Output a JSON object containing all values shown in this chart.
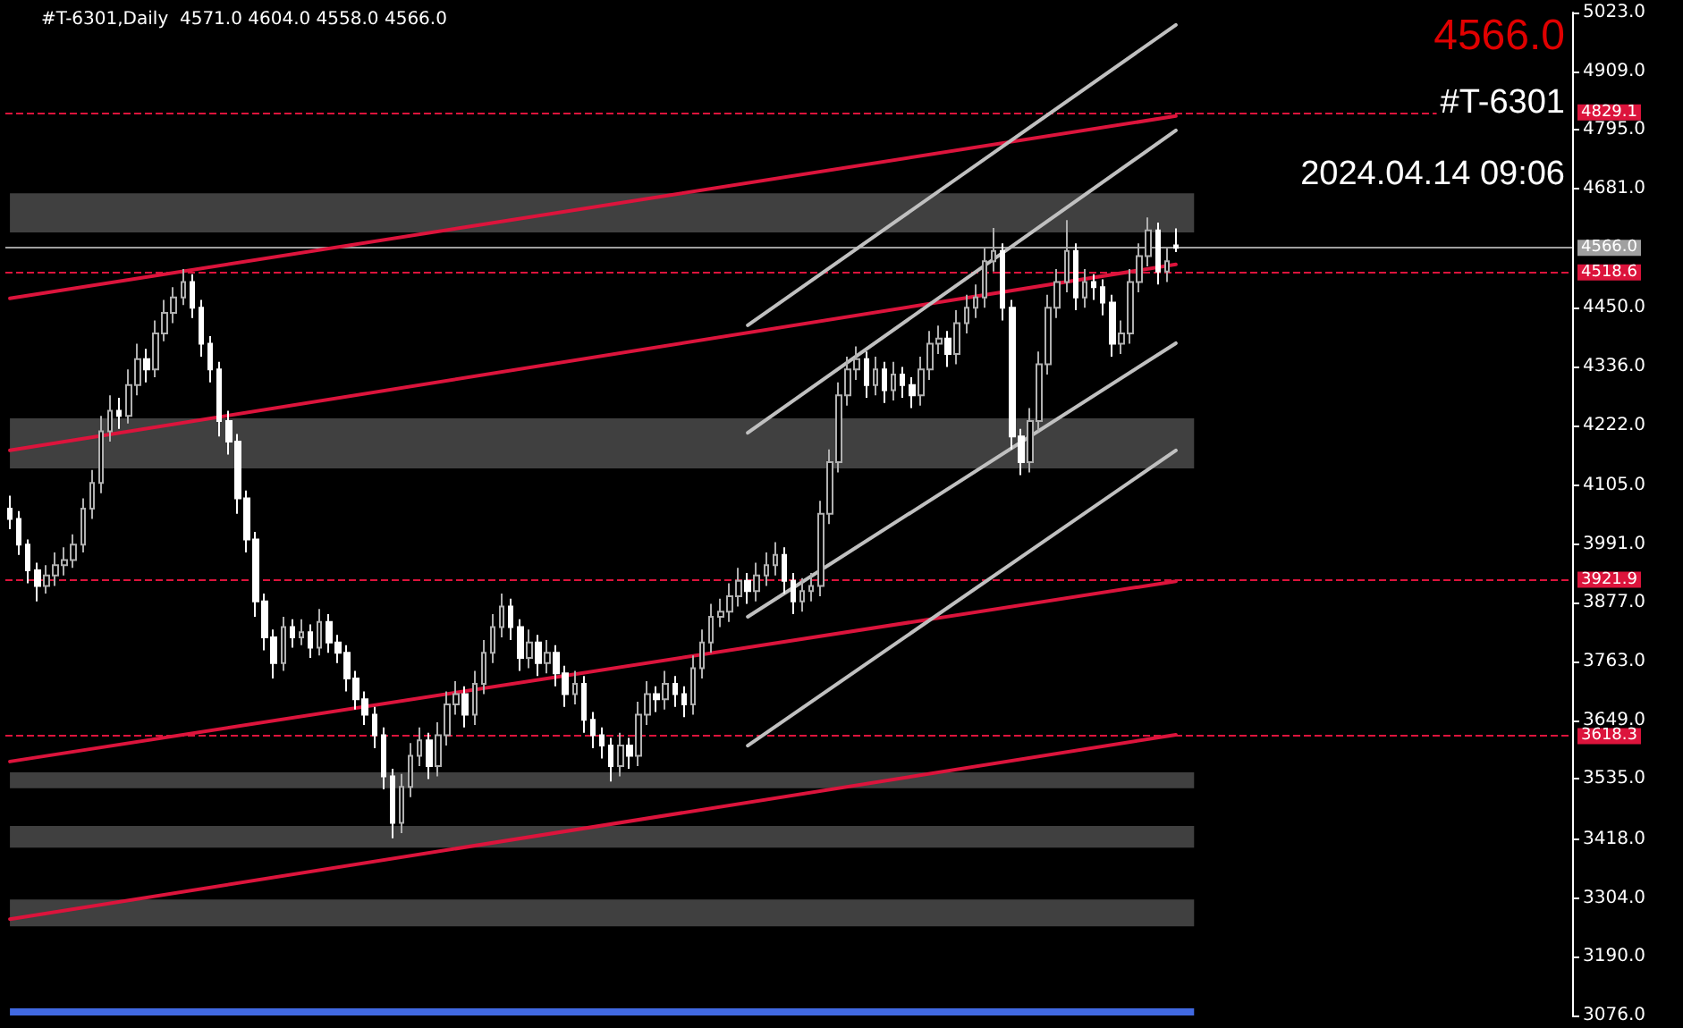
{
  "chart_data": {
    "type": "candlestick",
    "title": "#T-6301,Daily  4571.0 4604.0 4558.0 4566.0",
    "annotations": [
      "4566.0",
      "#T-6301",
      "2024.04.14 09:06"
    ],
    "categories": [
      null,
      null,
      null,
      null,
      null,
      null,
      null,
      null,
      null,
      null,
      null,
      null,
      null,
      null,
      null,
      null,
      null,
      null,
      null,
      null,
      null,
      null,
      null,
      null,
      null,
      null,
      null,
      null,
      null,
      null,
      null,
      null,
      null,
      null,
      null,
      null,
      null,
      null,
      null,
      null,
      null,
      null,
      null,
      null,
      null,
      null,
      null,
      null,
      null,
      null,
      null,
      null,
      null,
      null,
      null,
      null,
      null,
      null,
      null,
      null,
      null,
      null,
      null,
      null,
      null,
      null,
      null,
      null,
      null,
      null,
      null,
      null,
      null,
      null,
      null,
      null,
      null,
      null,
      null,
      null,
      null,
      null,
      null,
      null,
      null,
      null,
      null,
      null,
      null,
      null,
      null,
      null,
      null,
      null,
      null,
      null,
      null,
      null,
      null,
      null,
      null,
      null,
      null,
      null,
      null,
      null,
      null,
      null,
      null,
      null,
      null,
      null,
      null,
      null,
      null,
      null,
      null,
      null,
      null,
      null,
      null,
      null,
      null,
      null,
      null,
      null,
      null,
      null,
      null,
      null,
      null,
      null,
      null,
      null,
      null,
      null,
      null,
      null,
      null,
      null,
      null,
      null,
      null,
      null,
      null,
      null,
      null,
      null,
      null,
      null,
      null,
      null,
      null,
      null,
      null,
      null,
      null,
      null,
      null,
      null,
      null,
      null,
      null,
      null,
      null,
      null,
      null,
      null,
      null,
      null,
      null,
      null
    ],
    "ohlc": [
      [
        4060,
        4085,
        4020,
        4040
      ],
      [
        4040,
        4055,
        3970,
        3990
      ],
      [
        3990,
        4000,
        3915,
        3940
      ],
      [
        3940,
        3955,
        3880,
        3910
      ],
      [
        3910,
        3950,
        3895,
        3930
      ],
      [
        3930,
        3975,
        3910,
        3950
      ],
      [
        3950,
        3985,
        3930,
        3960
      ],
      [
        3960,
        4010,
        3945,
        3990
      ],
      [
        3990,
        4080,
        3975,
        4060
      ],
      [
        4060,
        4135,
        4040,
        4110
      ],
      [
        4110,
        4240,
        4090,
        4210
      ],
      [
        4210,
        4280,
        4190,
        4250
      ],
      [
        4250,
        4275,
        4215,
        4240
      ],
      [
        4240,
        4330,
        4225,
        4300
      ],
      [
        4300,
        4380,
        4280,
        4350
      ],
      [
        4350,
        4370,
        4305,
        4330
      ],
      [
        4330,
        4425,
        4315,
        4400
      ],
      [
        4400,
        4465,
        4385,
        4440
      ],
      [
        4440,
        4490,
        4420,
        4470
      ],
      [
        4470,
        4525,
        4455,
        4500
      ],
      [
        4500,
        4515,
        4430,
        4450
      ],
      [
        4450,
        4465,
        4355,
        4380
      ],
      [
        4380,
        4395,
        4305,
        4330
      ],
      [
        4330,
        4345,
        4200,
        4230
      ],
      [
        4230,
        4250,
        4165,
        4190
      ],
      [
        4190,
        4205,
        4050,
        4080
      ],
      [
        4080,
        4095,
        3975,
        4000
      ],
      [
        4000,
        4015,
        3850,
        3880
      ],
      [
        3880,
        3895,
        3785,
        3810
      ],
      [
        3810,
        3825,
        3730,
        3760
      ],
      [
        3760,
        3850,
        3745,
        3830
      ],
      [
        3830,
        3845,
        3790,
        3810
      ],
      [
        3810,
        3845,
        3795,
        3820
      ],
      [
        3820,
        3835,
        3770,
        3790
      ],
      [
        3790,
        3865,
        3775,
        3840
      ],
      [
        3840,
        3855,
        3780,
        3800
      ],
      [
        3800,
        3815,
        3760,
        3780
      ],
      [
        3780,
        3795,
        3705,
        3730
      ],
      [
        3730,
        3745,
        3670,
        3690
      ],
      [
        3690,
        3705,
        3640,
        3660
      ],
      [
        3660,
        3675,
        3595,
        3620
      ],
      [
        3620,
        3635,
        3515,
        3540
      ],
      [
        3540,
        3555,
        3420,
        3450
      ],
      [
        3450,
        3545,
        3430,
        3520
      ],
      [
        3520,
        3605,
        3500,
        3580
      ],
      [
        3580,
        3635,
        3560,
        3610
      ],
      [
        3610,
        3625,
        3535,
        3560
      ],
      [
        3560,
        3645,
        3540,
        3620
      ],
      [
        3620,
        3705,
        3600,
        3680
      ],
      [
        3680,
        3725,
        3660,
        3700
      ],
      [
        3700,
        3715,
        3635,
        3660
      ],
      [
        3660,
        3745,
        3640,
        3720
      ],
      [
        3720,
        3805,
        3700,
        3780
      ],
      [
        3780,
        3855,
        3760,
        3830
      ],
      [
        3830,
        3895,
        3810,
        3870
      ],
      [
        3870,
        3885,
        3805,
        3830
      ],
      [
        3830,
        3845,
        3745,
        3770
      ],
      [
        3770,
        3825,
        3750,
        3800
      ],
      [
        3800,
        3815,
        3735,
        3760
      ],
      [
        3760,
        3805,
        3740,
        3780
      ],
      [
        3780,
        3795,
        3715,
        3740
      ],
      [
        3740,
        3755,
        3675,
        3700
      ],
      [
        3700,
        3745,
        3680,
        3720
      ],
      [
        3720,
        3735,
        3625,
        3650
      ],
      [
        3650,
        3665,
        3595,
        3620
      ],
      [
        3620,
        3635,
        3575,
        3600
      ],
      [
        3600,
        3615,
        3530,
        3560
      ],
      [
        3560,
        3625,
        3540,
        3600
      ],
      [
        3600,
        3615,
        3555,
        3580
      ],
      [
        3580,
        3685,
        3560,
        3660
      ],
      [
        3660,
        3725,
        3640,
        3700
      ],
      [
        3700,
        3715,
        3665,
        3690
      ],
      [
        3690,
        3745,
        3670,
        3720
      ],
      [
        3720,
        3735,
        3675,
        3700
      ],
      [
        3700,
        3715,
        3655,
        3680
      ],
      [
        3680,
        3775,
        3660,
        3750
      ],
      [
        3750,
        3825,
        3730,
        3800
      ],
      [
        3800,
        3875,
        3780,
        3850
      ],
      [
        3850,
        3885,
        3830,
        3860
      ],
      [
        3860,
        3915,
        3840,
        3890
      ],
      [
        3890,
        3945,
        3870,
        3920
      ],
      [
        3920,
        3935,
        3875,
        3900
      ],
      [
        3900,
        3955,
        3880,
        3930
      ],
      [
        3930,
        3975,
        3910,
        3950
      ],
      [
        3950,
        3995,
        3930,
        3970
      ],
      [
        3970,
        3985,
        3895,
        3920
      ],
      [
        3920,
        3935,
        3855,
        3880
      ],
      [
        3880,
        3925,
        3860,
        3900
      ],
      [
        3900,
        3935,
        3880,
        3910
      ],
      [
        3910,
        4075,
        3890,
        4050
      ],
      [
        4050,
        4175,
        4030,
        4150
      ],
      [
        4150,
        4305,
        4130,
        4280
      ],
      [
        4280,
        4355,
        4260,
        4330
      ],
      [
        4330,
        4375,
        4310,
        4350
      ],
      [
        4350,
        4365,
        4275,
        4300
      ],
      [
        4300,
        4355,
        4280,
        4330
      ],
      [
        4330,
        4345,
        4265,
        4290
      ],
      [
        4290,
        4345,
        4270,
        4320
      ],
      [
        4320,
        4335,
        4275,
        4300
      ],
      [
        4300,
        4315,
        4255,
        4280
      ],
      [
        4280,
        4355,
        4260,
        4330
      ],
      [
        4330,
        4405,
        4310,
        4380
      ],
      [
        4380,
        4415,
        4360,
        4390
      ],
      [
        4390,
        4405,
        4335,
        4360
      ],
      [
        4360,
        4445,
        4340,
        4420
      ],
      [
        4420,
        4475,
        4400,
        4450
      ],
      [
        4450,
        4495,
        4430,
        4470
      ],
      [
        4470,
        4565,
        4450,
        4540
      ],
      [
        4540,
        4605,
        4520,
        4560
      ],
      [
        4560,
        4575,
        4425,
        4450
      ],
      [
        4450,
        4465,
        4175,
        4200
      ],
      [
        4200,
        4215,
        4125,
        4150
      ],
      [
        4150,
        4255,
        4130,
        4230
      ],
      [
        4230,
        4365,
        4210,
        4340
      ],
      [
        4340,
        4475,
        4320,
        4450
      ],
      [
        4450,
        4525,
        4430,
        4500
      ],
      [
        4500,
        4620,
        4480,
        4560
      ],
      [
        4560,
        4575,
        4445,
        4470
      ],
      [
        4470,
        4525,
        4450,
        4500
      ],
      [
        4500,
        4515,
        4465,
        4490
      ],
      [
        4490,
        4505,
        4435,
        4460
      ],
      [
        4460,
        4475,
        4355,
        4380
      ],
      [
        4380,
        4425,
        4360,
        4400
      ],
      [
        4400,
        4525,
        4380,
        4500
      ],
      [
        4500,
        4575,
        4480,
        4550
      ],
      [
        4550,
        4625,
        4530,
        4600
      ],
      [
        4600,
        4615,
        4495,
        4520
      ],
      [
        4520,
        4565,
        4500,
        4540
      ],
      [
        4571,
        4604,
        4558,
        4566
      ],
      null,
      null,
      null,
      null,
      null,
      null,
      null,
      null,
      null,
      null,
      null,
      null,
      null,
      null,
      null,
      null,
      null,
      null,
      null,
      null,
      null,
      null,
      null,
      null,
      null,
      null,
      null,
      null,
      null,
      null,
      null,
      null,
      null,
      null,
      null,
      null,
      null,
      null,
      null,
      null,
      null,
      null,
      null
    ],
    "series": [
      {
        "type": "line",
        "color": "#dc143c",
        "values": [
          4468,
          null,
          null,
          null,
          null,
          null,
          null,
          null,
          null,
          null,
          null,
          null,
          null,
          null,
          null,
          null,
          null,
          null,
          null,
          null,
          null,
          null,
          null,
          null,
          null,
          null,
          null,
          null,
          null,
          null,
          null,
          null,
          null,
          null,
          null,
          null,
          null,
          null,
          null,
          null,
          null,
          null,
          null,
          null,
          null,
          null,
          null,
          null,
          null,
          null,
          null,
          null,
          null,
          null,
          null,
          null,
          null,
          null,
          null,
          null,
          null,
          null,
          null,
          null,
          null,
          null,
          null,
          null,
          null,
          null,
          null,
          null,
          null,
          null,
          null,
          null,
          null,
          null,
          null,
          null,
          null,
          null,
          null,
          null,
          null,
          null,
          null,
          null,
          null,
          null,
          null,
          null,
          null,
          null,
          null,
          null,
          null,
          null,
          null,
          null,
          null,
          null,
          null,
          null,
          null,
          null,
          null,
          null,
          null,
          null,
          null,
          null,
          null,
          null,
          null,
          null,
          null,
          null,
          null,
          null,
          null,
          null,
          null,
          null,
          null,
          null,
          null,
          null,
          4822,
          null,
          null,
          null,
          null,
          null,
          null,
          null,
          null,
          null,
          null,
          null,
          null,
          null,
          null,
          null,
          null,
          null,
          null,
          null,
          null,
          null,
          null,
          null,
          null,
          null,
          null,
          null,
          null,
          null,
          null,
          null,
          null,
          null,
          null,
          null,
          null,
          null,
          null,
          null,
          null,
          null,
          null,
          null
        ]
      },
      {
        "type": "line",
        "color": "#dc143c",
        "values": [
          4173,
          null,
          null,
          null,
          null,
          null,
          null,
          null,
          null,
          null,
          null,
          null,
          null,
          null,
          null,
          null,
          null,
          null,
          null,
          null,
          null,
          null,
          null,
          null,
          null,
          null,
          null,
          null,
          null,
          null,
          null,
          null,
          null,
          null,
          null,
          null,
          null,
          null,
          null,
          null,
          null,
          null,
          null,
          null,
          null,
          null,
          null,
          null,
          null,
          null,
          null,
          null,
          null,
          null,
          null,
          null,
          null,
          null,
          null,
          null,
          null,
          null,
          null,
          null,
          null,
          null,
          null,
          null,
          null,
          null,
          null,
          null,
          null,
          null,
          null,
          null,
          null,
          null,
          null,
          null,
          null,
          null,
          null,
          null,
          null,
          null,
          null,
          null,
          null,
          null,
          null,
          null,
          null,
          null,
          null,
          null,
          null,
          null,
          null,
          null,
          null,
          null,
          null,
          null,
          null,
          null,
          null,
          null,
          null,
          null,
          null,
          null,
          null,
          null,
          null,
          null,
          null,
          null,
          null,
          null,
          null,
          null,
          null,
          null,
          null,
          null,
          null,
          null,
          4534,
          null,
          null,
          null,
          null,
          null,
          null,
          null,
          null,
          null,
          null,
          null,
          null,
          null,
          null,
          null,
          null,
          null,
          null,
          null,
          null,
          null,
          null,
          null,
          null,
          null,
          null,
          null,
          null,
          null,
          null,
          null,
          null,
          null,
          null,
          null,
          null,
          null,
          null,
          null,
          null,
          null,
          null,
          null
        ]
      },
      {
        "type": "line",
        "color": "#dc143c",
        "values": [
          3569,
          null,
          null,
          null,
          null,
          null,
          null,
          null,
          null,
          null,
          null,
          null,
          null,
          null,
          null,
          null,
          null,
          null,
          null,
          null,
          null,
          null,
          null,
          null,
          null,
          null,
          null,
          null,
          null,
          null,
          null,
          null,
          null,
          null,
          null,
          null,
          null,
          null,
          null,
          null,
          null,
          null,
          null,
          null,
          null,
          null,
          null,
          null,
          null,
          null,
          null,
          null,
          null,
          null,
          null,
          null,
          null,
          null,
          null,
          null,
          null,
          null,
          null,
          null,
          null,
          null,
          null,
          null,
          null,
          null,
          null,
          null,
          null,
          null,
          null,
          null,
          null,
          null,
          null,
          null,
          null,
          null,
          null,
          null,
          null,
          null,
          null,
          null,
          null,
          null,
          null,
          null,
          null,
          null,
          null,
          null,
          null,
          null,
          null,
          null,
          null,
          null,
          null,
          null,
          null,
          null,
          null,
          null,
          null,
          null,
          null,
          null,
          null,
          null,
          null,
          null,
          null,
          null,
          null,
          null,
          null,
          null,
          null,
          null,
          null,
          null,
          null,
          null,
          3919,
          null,
          null,
          null,
          null,
          null,
          null,
          null,
          null,
          null,
          null,
          null,
          null,
          null,
          null,
          null,
          null,
          null,
          null,
          null,
          null,
          null,
          null,
          null,
          null,
          null,
          null,
          null,
          null,
          null,
          null,
          null,
          null,
          null,
          null,
          null,
          null,
          null,
          null,
          null,
          null,
          null,
          null,
          null
        ]
      },
      {
        "type": "line",
        "color": "#dc143c",
        "values": [
          3263,
          null,
          null,
          null,
          null,
          null,
          null,
          null,
          null,
          null,
          null,
          null,
          null,
          null,
          null,
          null,
          null,
          null,
          null,
          null,
          null,
          null,
          null,
          null,
          null,
          null,
          null,
          null,
          null,
          null,
          null,
          null,
          null,
          null,
          null,
          null,
          null,
          null,
          null,
          null,
          null,
          null,
          null,
          null,
          null,
          null,
          null,
          null,
          null,
          null,
          null,
          null,
          null,
          null,
          null,
          null,
          null,
          null,
          null,
          null,
          null,
          null,
          null,
          null,
          null,
          null,
          null,
          null,
          null,
          null,
          null,
          null,
          null,
          null,
          null,
          null,
          null,
          null,
          null,
          null,
          null,
          null,
          null,
          null,
          null,
          null,
          null,
          null,
          null,
          null,
          null,
          null,
          null,
          null,
          null,
          null,
          null,
          null,
          null,
          null,
          null,
          null,
          null,
          null,
          null,
          null,
          null,
          null,
          null,
          null,
          null,
          null,
          null,
          null,
          null,
          null,
          null,
          null,
          null,
          null,
          null,
          null,
          null,
          null,
          null,
          null,
          null,
          null,
          3621,
          null,
          null,
          null,
          null,
          null,
          null,
          null,
          null,
          null,
          null,
          null,
          null,
          null,
          null,
          null,
          null,
          null,
          null,
          null,
          null,
          null,
          null,
          null,
          null,
          null,
          null,
          null,
          null,
          null,
          null,
          null,
          null,
          null,
          null,
          null,
          null,
          null,
          null,
          null,
          null,
          null,
          null,
          null
        ]
      },
      {
        "type": "line",
        "color": "#c0c0c0",
        "values": [
          null,
          null,
          null,
          null,
          null,
          null,
          null,
          null,
          null,
          null,
          null,
          null,
          null,
          null,
          null,
          null,
          null,
          null,
          null,
          null,
          null,
          null,
          null,
          null,
          null,
          null,
          null,
          null,
          null,
          null,
          null,
          null,
          null,
          null,
          null,
          null,
          null,
          null,
          null,
          null,
          null,
          null,
          null,
          null,
          null,
          null,
          null,
          null,
          null,
          null,
          null,
          null,
          null,
          null,
          null,
          null,
          null,
          null,
          null,
          null,
          null,
          null,
          null,
          null,
          null,
          null,
          null,
          null,
          null,
          null,
          null,
          null,
          null,
          null,
          null,
          null,
          null,
          null,
          null,
          null,
          null,
          4416,
          null,
          null,
          null,
          null,
          null,
          null,
          null,
          null,
          null,
          null,
          null,
          null,
          null,
          null,
          null,
          null,
          null,
          null,
          null,
          null,
          null,
          null,
          null,
          null,
          null,
          null,
          null,
          null,
          null,
          null,
          null,
          null,
          null,
          null,
          null,
          null,
          null,
          null,
          null,
          null,
          null,
          null,
          null,
          null,
          null,
          null,
          4999,
          null,
          null,
          null,
          null,
          null,
          null,
          null,
          null,
          null,
          null,
          null,
          null,
          null,
          null,
          null,
          null,
          null,
          null,
          null,
          null,
          null,
          null,
          null,
          null,
          null,
          null,
          null,
          null,
          null,
          null,
          null,
          null,
          null,
          null,
          null,
          null,
          null,
          null,
          null,
          null,
          null,
          null,
          null
        ]
      },
      {
        "type": "line",
        "color": "#c0c0c0",
        "values": [
          null,
          null,
          null,
          null,
          null,
          null,
          null,
          null,
          null,
          null,
          null,
          null,
          null,
          null,
          null,
          null,
          null,
          null,
          null,
          null,
          null,
          null,
          null,
          null,
          null,
          null,
          null,
          null,
          null,
          null,
          null,
          null,
          null,
          null,
          null,
          null,
          null,
          null,
          null,
          null,
          null,
          null,
          null,
          null,
          null,
          null,
          null,
          null,
          null,
          null,
          null,
          null,
          null,
          null,
          null,
          null,
          null,
          null,
          null,
          null,
          null,
          null,
          null,
          null,
          null,
          null,
          null,
          null,
          null,
          null,
          null,
          null,
          null,
          null,
          null,
          null,
          null,
          null,
          null,
          null,
          null,
          4207,
          null,
          null,
          null,
          null,
          null,
          null,
          null,
          null,
          null,
          null,
          null,
          null,
          null,
          null,
          null,
          null,
          null,
          null,
          null,
          null,
          null,
          null,
          null,
          null,
          null,
          null,
          null,
          null,
          null,
          null,
          null,
          null,
          null,
          null,
          null,
          null,
          null,
          null,
          null,
          null,
          null,
          null,
          null,
          null,
          null,
          null,
          4794,
          null,
          null,
          null,
          null,
          null,
          null,
          null,
          null,
          null,
          null,
          null,
          null,
          null,
          null,
          null,
          null,
          null,
          null,
          null,
          null,
          null,
          null,
          null,
          null,
          null,
          null,
          null,
          null,
          null,
          null,
          null,
          null,
          null,
          null,
          null,
          null,
          null,
          null,
          null,
          null,
          null,
          null,
          null
        ]
      },
      {
        "type": "line",
        "color": "#c0c0c0",
        "values": [
          null,
          null,
          null,
          null,
          null,
          null,
          null,
          null,
          null,
          null,
          null,
          null,
          null,
          null,
          null,
          null,
          null,
          null,
          null,
          null,
          null,
          null,
          null,
          null,
          null,
          null,
          null,
          null,
          null,
          null,
          null,
          null,
          null,
          null,
          null,
          null,
          null,
          null,
          null,
          null,
          null,
          null,
          null,
          null,
          null,
          null,
          null,
          null,
          null,
          null,
          null,
          null,
          null,
          null,
          null,
          null,
          null,
          null,
          null,
          null,
          null,
          null,
          null,
          null,
          null,
          null,
          null,
          null,
          null,
          null,
          null,
          null,
          null,
          null,
          null,
          null,
          null,
          null,
          null,
          null,
          null,
          3850,
          null,
          null,
          null,
          null,
          null,
          null,
          null,
          null,
          null,
          null,
          null,
          null,
          null,
          null,
          null,
          null,
          null,
          null,
          null,
          null,
          null,
          null,
          null,
          null,
          null,
          null,
          null,
          null,
          null,
          null,
          null,
          null,
          null,
          null,
          null,
          null,
          null,
          null,
          null,
          null,
          null,
          null,
          null,
          null,
          null,
          null,
          4381,
          null,
          null,
          null,
          null,
          null,
          null,
          null,
          null,
          null,
          null,
          null,
          null,
          null,
          null,
          null,
          null,
          null,
          null,
          null,
          null,
          null,
          null,
          null,
          null,
          null,
          null,
          null,
          null,
          null,
          null,
          null,
          null,
          null,
          null,
          null,
          null,
          null,
          null,
          null,
          null,
          null,
          null,
          null
        ]
      },
      {
        "type": "line",
        "color": "#c0c0c0",
        "values": [
          null,
          null,
          null,
          null,
          null,
          null,
          null,
          null,
          null,
          null,
          null,
          null,
          null,
          null,
          null,
          null,
          null,
          null,
          null,
          null,
          null,
          null,
          null,
          null,
          null,
          null,
          null,
          null,
          null,
          null,
          null,
          null,
          null,
          null,
          null,
          null,
          null,
          null,
          null,
          null,
          null,
          null,
          null,
          null,
          null,
          null,
          null,
          null,
          null,
          null,
          null,
          null,
          null,
          null,
          null,
          null,
          null,
          null,
          null,
          null,
          null,
          null,
          null,
          null,
          null,
          null,
          null,
          null,
          null,
          null,
          null,
          null,
          null,
          null,
          null,
          null,
          null,
          null,
          null,
          null,
          null,
          3600,
          null,
          null,
          null,
          null,
          null,
          null,
          null,
          null,
          null,
          null,
          null,
          null,
          null,
          null,
          null,
          null,
          null,
          null,
          null,
          null,
          null,
          null,
          null,
          null,
          null,
          null,
          null,
          null,
          null,
          null,
          null,
          null,
          null,
          null,
          null,
          null,
          null,
          null,
          null,
          null,
          null,
          null,
          null,
          null,
          null,
          null,
          4173,
          null,
          null,
          null,
          null,
          null,
          null,
          null,
          null,
          null,
          null,
          null,
          null,
          null,
          null,
          null,
          null,
          null,
          null,
          null,
          null,
          null,
          null,
          null,
          null,
          null,
          null,
          null,
          null,
          null,
          null,
          null,
          null,
          null,
          null,
          null,
          null,
          null,
          null,
          null,
          null,
          null,
          null,
          null
        ]
      }
    ],
    "ylim": [
      3076,
      5023
    ],
    "yticks": [
      {
        "value": 3076,
        "label": "3076.0"
      },
      {
        "value": 3190,
        "label": "3190.0"
      },
      {
        "value": 3304,
        "label": "3304.0"
      },
      {
        "value": 3418,
        "label": "3418.0"
      },
      {
        "value": 3535,
        "label": "3535.0"
      },
      {
        "value": 3649,
        "label": "3649.0"
      },
      {
        "value": 3763,
        "label": "3763.0"
      },
      {
        "value": 3877,
        "label": "3877.0"
      },
      {
        "value": 3991,
        "label": "3991.0"
      },
      {
        "value": 4105,
        "label": "4105.0"
      },
      {
        "value": 4222,
        "label": "4222.0"
      },
      {
        "value": 4336,
        "label": "4336.0"
      },
      {
        "value": 4450,
        "label": "4450.0"
      },
      {
        "value": 4681,
        "label": "4681.0"
      },
      {
        "value": 4795,
        "label": "4795.0"
      },
      {
        "value": 4909,
        "label": "4909.0"
      },
      {
        "value": 5023,
        "label": "5023.0"
      }
    ],
    "ref_lines": [
      {
        "axis": "y",
        "value": 4829.1,
        "label": "4829.1",
        "color": "#dc143c",
        "line_style": "dashed"
      },
      {
        "axis": "y",
        "value": 4518.6,
        "label": "4518.6",
        "color": "#dc143c",
        "line_style": "dashed"
      },
      {
        "axis": "y",
        "value": 3921.9,
        "label": "3921.9",
        "color": "#dc143c",
        "line_style": "dashed"
      },
      {
        "axis": "y",
        "value": 3618.3,
        "label": "3618.3",
        "color": "#dc143c",
        "line_style": "dashed"
      },
      {
        "axis": "y",
        "value": 4566.0,
        "label": "4566.0",
        "color": "#a0a0a0",
        "line_style": "solid"
      }
    ],
    "bands": [
      {
        "axis": "y",
        "from": 4596,
        "to": 4672,
        "color": "#404040"
      },
      {
        "axis": "y",
        "from": 4138,
        "to": 4235,
        "color": "#404040"
      },
      {
        "axis": "y",
        "from": 3517,
        "to": 3548,
        "color": "#404040"
      },
      {
        "axis": "y",
        "from": 3402,
        "to": 3444,
        "color": "#404040"
      },
      {
        "axis": "y",
        "from": 3249,
        "to": 3301,
        "color": "#404040"
      },
      {
        "axis": "y",
        "from": 3076,
        "to": 3090,
        "color": "#4169e1"
      }
    ],
    "tick_labels": "y",
    "grid": false
  }
}
